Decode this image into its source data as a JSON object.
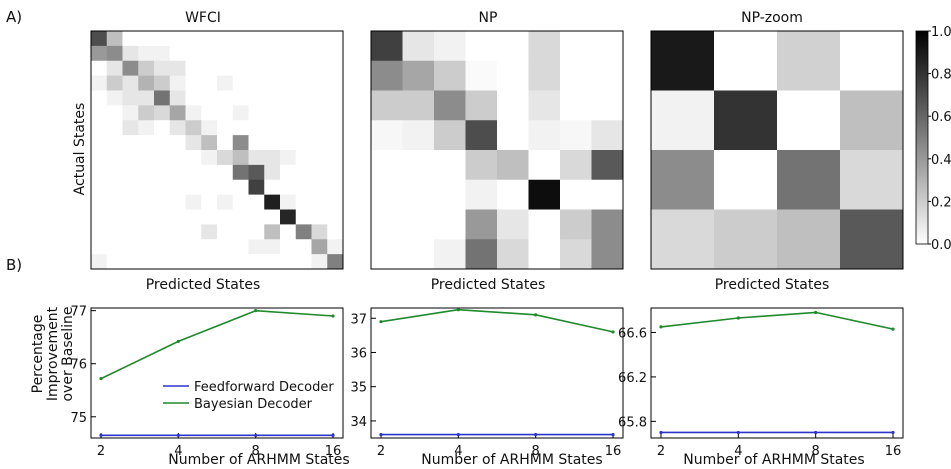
{
  "panel_labels": {
    "a": "A)",
    "b": "B)"
  },
  "colors": {
    "feedforward": "#2b35c9",
    "bayesian": "#1e8a2c",
    "axis": "#000000"
  },
  "chart_data": [
    {
      "id": "wfci-confusion",
      "type": "heatmap",
      "title": "WFCI",
      "xlabel": "Predicted States",
      "ylabel": "Actual States",
      "grid": false,
      "rows": 16,
      "cols": 16,
      "values": [
        [
          0.7,
          0.25,
          0,
          0,
          0,
          0,
          0,
          0,
          0,
          0,
          0,
          0,
          0,
          0,
          0,
          0
        ],
        [
          0.4,
          0.45,
          0.1,
          0.05,
          0.05,
          0,
          0,
          0,
          0,
          0,
          0,
          0,
          0,
          0,
          0,
          0
        ],
        [
          0,
          0.1,
          0.45,
          0.2,
          0.1,
          0.1,
          0,
          0,
          0,
          0,
          0,
          0,
          0,
          0,
          0,
          0
        ],
        [
          0.05,
          0.2,
          0.1,
          0.3,
          0.2,
          0.05,
          0,
          0,
          0.05,
          0,
          0,
          0,
          0,
          0,
          0,
          0
        ],
        [
          0,
          0.05,
          0.1,
          0.1,
          0.55,
          0.1,
          0,
          0,
          0,
          0,
          0,
          0,
          0,
          0,
          0,
          0
        ],
        [
          0,
          0,
          0.05,
          0.2,
          0.15,
          0.35,
          0.05,
          0,
          0,
          0.05,
          0,
          0,
          0,
          0,
          0,
          0
        ],
        [
          0,
          0,
          0.1,
          0.05,
          0,
          0.1,
          0.2,
          0.05,
          0,
          0,
          0,
          0,
          0,
          0,
          0,
          0
        ],
        [
          0,
          0,
          0,
          0,
          0,
          0,
          0.1,
          0.25,
          0,
          0.45,
          0,
          0,
          0,
          0,
          0,
          0
        ],
        [
          0,
          0,
          0,
          0,
          0,
          0,
          0,
          0.05,
          0.15,
          0.25,
          0.1,
          0.1,
          0.05,
          0,
          0,
          0
        ],
        [
          0,
          0,
          0,
          0,
          0,
          0,
          0,
          0,
          0,
          0.55,
          0.65,
          0.1,
          0,
          0,
          0,
          0
        ],
        [
          0,
          0,
          0,
          0,
          0,
          0,
          0,
          0,
          0,
          0,
          0.75,
          0,
          0,
          0,
          0,
          0
        ],
        [
          0,
          0,
          0,
          0,
          0,
          0,
          0.05,
          0,
          0.05,
          0,
          0,
          0.88,
          0.05,
          0,
          0,
          0
        ],
        [
          0,
          0,
          0,
          0,
          0,
          0,
          0,
          0,
          0,
          0,
          0,
          0,
          0.85,
          0,
          0,
          0
        ],
        [
          0,
          0,
          0,
          0,
          0,
          0,
          0,
          0.1,
          0,
          0,
          0,
          0.25,
          0,
          0.5,
          0.15,
          0
        ],
        [
          0,
          0,
          0,
          0,
          0,
          0,
          0,
          0,
          0,
          0,
          0.05,
          0.05,
          0,
          0,
          0.35,
          0.05
        ],
        [
          0.05,
          0,
          0,
          0,
          0,
          0,
          0,
          0,
          0,
          0,
          0,
          0,
          0,
          0,
          0.05,
          0.5
        ]
      ]
    },
    {
      "id": "np-confusion",
      "type": "heatmap",
      "title": "NP",
      "xlabel": "Predicted States",
      "ylabel": "",
      "grid": false,
      "rows": 8,
      "cols": 8,
      "values": [
        [
          0.75,
          0.1,
          0.05,
          0,
          0,
          0.15,
          0,
          0
        ],
        [
          0.45,
          0.35,
          0.2,
          0.02,
          0,
          0.15,
          0,
          0
        ],
        [
          0.2,
          0.2,
          0.45,
          0.2,
          0,
          0.1,
          0,
          0
        ],
        [
          0.03,
          0.05,
          0.2,
          0.7,
          0,
          0.05,
          0.03,
          0.1
        ],
        [
          0,
          0,
          0,
          0.2,
          0.25,
          0,
          0.15,
          0.65
        ],
        [
          0,
          0,
          0,
          0.05,
          0,
          0.95,
          0,
          0
        ],
        [
          0,
          0,
          0,
          0.4,
          0.1,
          0,
          0.2,
          0.45
        ],
        [
          0,
          0,
          0.05,
          0.55,
          0.15,
          0,
          0.15,
          0.45
        ]
      ]
    },
    {
      "id": "np-zoom-confusion",
      "type": "heatmap",
      "title": "NP-zoom",
      "xlabel": "Predicted States",
      "ylabel": "",
      "grid": false,
      "rows": 4,
      "cols": 4,
      "values": [
        [
          0.9,
          0,
          0.18,
          0
        ],
        [
          0.05,
          0.8,
          0,
          0.25
        ],
        [
          0.45,
          0,
          0.55,
          0.15
        ],
        [
          0.15,
          0.2,
          0.25,
          0.65
        ]
      ]
    },
    {
      "id": "colorbar",
      "type": "colorbar",
      "vmin": 0,
      "vmax": 1,
      "ticks": [
        "0.0",
        "0.2",
        "0.4",
        "0.6",
        "0.8",
        "1.0"
      ],
      "tick_values": [
        0,
        0.2,
        0.4,
        0.6,
        0.8,
        1.0
      ]
    },
    {
      "id": "wfci-improvement",
      "type": "line",
      "xlabel": "Number of ARHMM States",
      "ylabel": "Percentage Improvement over Baseline",
      "x": [
        2,
        4,
        8,
        16
      ],
      "x_ticks": [
        "2",
        "4",
        "8",
        "16"
      ],
      "x_scale": "log2",
      "ylim": [
        74.6,
        77.05
      ],
      "y_ticks": [
        75,
        76,
        77
      ],
      "y_tick_labels": [
        "75",
        "76",
        "77"
      ],
      "legend": "inside-lower-right",
      "series": [
        {
          "name": "Feedforward Decoder",
          "color_key": "feedforward",
          "values": [
            74.65,
            74.65,
            74.65,
            74.65
          ]
        },
        {
          "name": "Bayesian Decoder",
          "color_key": "bayesian",
          "values": [
            75.72,
            76.42,
            77.0,
            76.9
          ]
        }
      ]
    },
    {
      "id": "np-improvement",
      "type": "line",
      "xlabel": "Number of ARHMM States",
      "ylabel": "",
      "x": [
        2,
        4,
        8,
        16
      ],
      "x_ticks": [
        "2",
        "4",
        "8",
        "16"
      ],
      "x_scale": "log2",
      "ylim": [
        33.5,
        37.3
      ],
      "y_ticks": [
        34,
        35,
        36,
        37
      ],
      "y_tick_labels": [
        "34",
        "35",
        "36",
        "37"
      ],
      "series": [
        {
          "color_key": "feedforward",
          "values": [
            33.6,
            33.6,
            33.6,
            33.6
          ]
        },
        {
          "color_key": "bayesian",
          "values": [
            36.9,
            37.25,
            37.1,
            36.6
          ]
        }
      ]
    },
    {
      "id": "np-zoom-improvement",
      "type": "line",
      "xlabel": "Number of ARHMM States",
      "ylabel": "",
      "x": [
        2,
        4,
        8,
        16
      ],
      "x_ticks": [
        "2",
        "4",
        "8",
        "16"
      ],
      "x_scale": "log2",
      "ylim": [
        65.65,
        66.82
      ],
      "y_ticks": [
        65.8,
        66.2,
        66.6
      ],
      "y_tick_labels": [
        "65.8",
        "66.2",
        "66.6"
      ],
      "series": [
        {
          "color_key": "feedforward",
          "values": [
            65.7,
            65.7,
            65.7,
            65.7
          ]
        },
        {
          "color_key": "bayesian",
          "values": [
            66.65,
            66.73,
            66.78,
            66.63
          ]
        }
      ]
    }
  ]
}
